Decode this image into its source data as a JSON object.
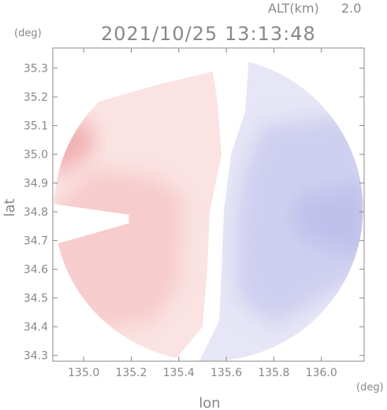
{
  "chart_data": {
    "type": "heatmap",
    "altitude_label": "ALT(km)",
    "altitude_value": "2.0",
    "timestamp": "2021/10/25 13:13:48",
    "xlabel": "lon",
    "ylabel": "lat",
    "x_unit": "(deg)",
    "y_unit": "(deg)",
    "xlim": [
      134.87,
      136.18
    ],
    "ylim": [
      34.28,
      35.37
    ],
    "x_ticks": [
      "135.0",
      "135.2",
      "135.4",
      "135.6",
      "135.8",
      "136.0"
    ],
    "y_ticks": [
      "34.3",
      "34.4",
      "34.5",
      "34.6",
      "34.7",
      "34.8",
      "34.9",
      "35.0",
      "35.1",
      "35.2",
      "35.3"
    ],
    "radar_center": {
      "lon": 135.525,
      "lat": 34.81
    },
    "radar_range_deg": {
      "lon": 0.65,
      "lat": 0.53
    },
    "colors": {
      "positive_light": "#fbe3e3",
      "positive_mid": "#f7cccc",
      "positive_strong": "#ea8a8a",
      "zero": "#ffffff",
      "negative_light": "#e6e6f6",
      "negative_mid": "#cfcff0",
      "negative_strong": "#b6b6e8",
      "axis": "#888888"
    }
  }
}
